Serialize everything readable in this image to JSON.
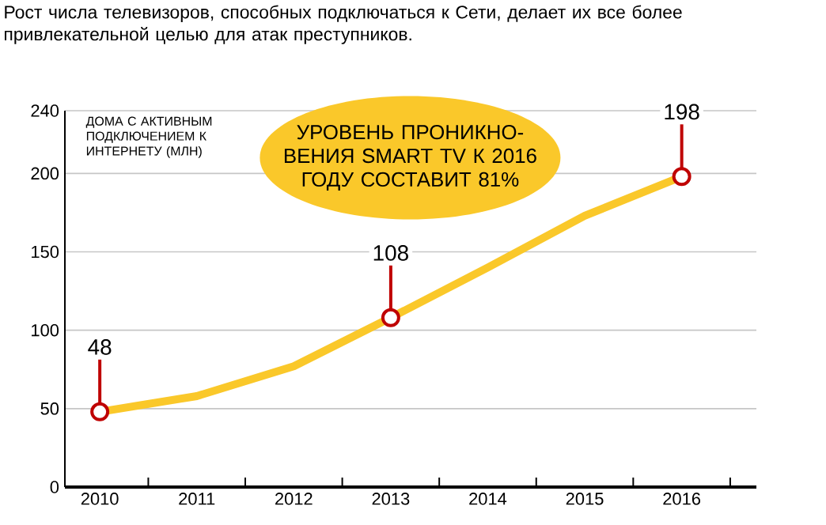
{
  "chart_data": {
    "type": "line",
    "title": "Рост числа телевизоров, способных подключаться к Сети, делает их все более привлекательной целью для атак преступников.",
    "ylabel": "ДОМА С АКТИВНЫМ ПОДКЛЮЧЕНИЕМ К ИНТЕРНЕТУ (МЛН)",
    "categories": [
      "2010",
      "2011",
      "2012",
      "2013",
      "2014",
      "2015",
      "2016"
    ],
    "series": [
      {
        "color": "#fac82a",
        "values": [
          48,
          58,
          77,
          108,
          140,
          173,
          198
        ],
        "value_labels": [
          "48",
          null,
          null,
          "108",
          null,
          null,
          "198"
        ]
      }
    ],
    "ylim": [
      0,
      240
    ],
    "yticks": [
      0,
      50,
      100,
      150,
      200,
      240
    ],
    "grid": "y",
    "annotations": [
      "УРОВЕНЬ ПРОНИКНО-ВЕНИЯ SMART TV К 2016 ГОДУ СОСТАВИТ 81%"
    ]
  }
}
